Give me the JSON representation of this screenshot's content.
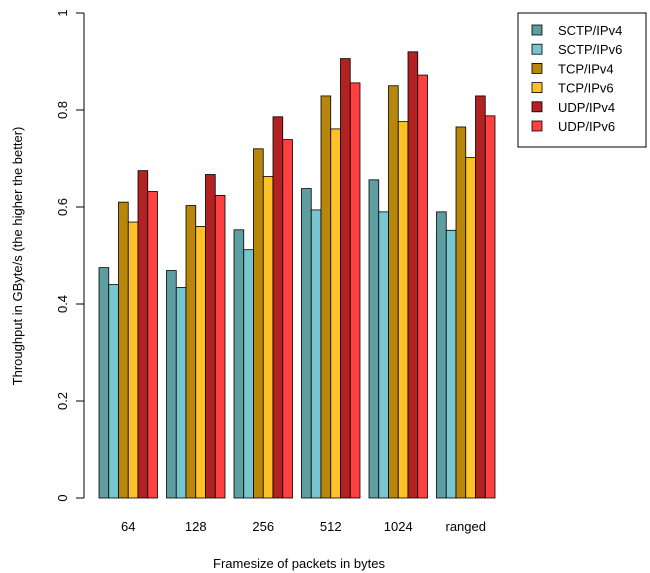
{
  "chart_data": {
    "type": "bar",
    "title": "",
    "xlabel": "Framesize of packets in bytes",
    "ylabel": "Throughput in GByte/s (the higher the better)",
    "ylim": [
      0,
      1
    ],
    "yticks": [
      "0",
      "0.2",
      "0.4",
      "0.6",
      "0.8",
      "1"
    ],
    "grid": false,
    "legend_position": "top-right",
    "categories": [
      "64",
      "128",
      "256",
      "512",
      "1024",
      "ranged"
    ],
    "series": [
      {
        "name": "SCTP/IPv4",
        "color": "#5e9ea0",
        "values": [
          0.475,
          0.469,
          0.553,
          0.638,
          0.656,
          0.59
        ]
      },
      {
        "name": "SCTP/IPv6",
        "color": "#76c5cf",
        "values": [
          0.44,
          0.434,
          0.512,
          0.594,
          0.59,
          0.552
        ]
      },
      {
        "name": "TCP/IPv4",
        "color": "#b8860b",
        "values": [
          0.61,
          0.603,
          0.72,
          0.829,
          0.85,
          0.765
        ]
      },
      {
        "name": "TCP/IPv6",
        "color": "#ffc125",
        "values": [
          0.569,
          0.56,
          0.663,
          0.761,
          0.776,
          0.702
        ]
      },
      {
        "name": "UDP/IPv4",
        "color": "#b22222",
        "values": [
          0.675,
          0.667,
          0.786,
          0.906,
          0.92,
          0.829
        ]
      },
      {
        "name": "UDP/IPv6",
        "color": "#ff4040",
        "values": [
          0.632,
          0.624,
          0.739,
          0.856,
          0.872,
          0.788
        ]
      }
    ]
  }
}
